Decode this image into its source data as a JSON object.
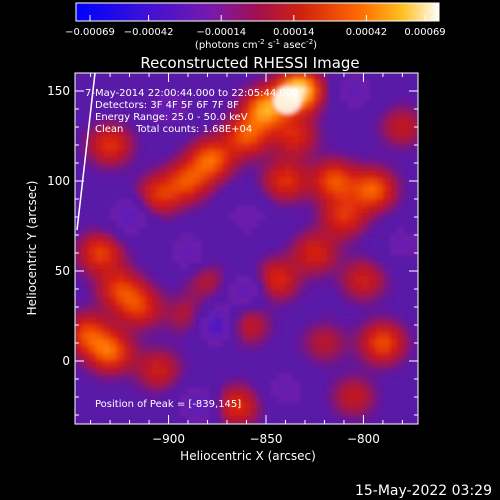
{
  "chart_data": {
    "type": "heatmap",
    "title": "Reconstructed RHESSI Image",
    "xlabel": "Heliocentric X (arcsec)",
    "ylabel": "Heliocentric Y (arcsec)",
    "xlim": [
      -948,
      -772
    ],
    "ylim": [
      -35,
      160
    ],
    "x_ticks": [
      -900,
      -850,
      -800
    ],
    "y_ticks": [
      0,
      50,
      100,
      150
    ],
    "colorbar": {
      "tick_labels": [
        "-0.00069",
        "-0.00042",
        "-0.00014",
        "0.00014",
        "0.00042",
        "0.00069"
      ],
      "units_prefix": "(photons cm",
      "units_sup1": "-2",
      "units_mid": " s",
      "units_sup2": "-1",
      "units_mid2": " asec",
      "units_sup3": "-2",
      "units_suffix": ")"
    },
    "annotations": [
      "7-May-2014 22:00:44.000 to 22:05:44.000",
      "Detectors: 3F 4F 5F 6F 7F 8F",
      "Energy Range: 25.0 - 50.0 keV",
      "Clean    Total counts: 1.68E+04"
    ],
    "peak_label": "Position of Peak = [-839,145]",
    "peak": [
      -839,
      145
    ],
    "blobs": [
      {
        "x": -833,
        "y": 150,
        "value": 1.0
      },
      {
        "x": -850,
        "y": 140,
        "value": 0.75
      },
      {
        "x": -860,
        "y": 125,
        "value": 0.55
      },
      {
        "x": -878,
        "y": 112,
        "value": 0.6
      },
      {
        "x": -890,
        "y": 100,
        "value": 0.5
      },
      {
        "x": -905,
        "y": 92,
        "value": 0.45
      },
      {
        "x": -930,
        "y": 120,
        "value": 0.45
      },
      {
        "x": -935,
        "y": 60,
        "value": 0.5
      },
      {
        "x": -925,
        "y": 40,
        "value": 0.45
      },
      {
        "x": -915,
        "y": 30,
        "value": 0.45
      },
      {
        "x": -942,
        "y": 15,
        "value": 0.5
      },
      {
        "x": -930,
        "y": 5,
        "value": 0.6
      },
      {
        "x": -905,
        "y": -5,
        "value": 0.35
      },
      {
        "x": -890,
        "y": 25,
        "value": 0.25
      },
      {
        "x": -880,
        "y": 45,
        "value": 0.25
      },
      {
        "x": -840,
        "y": 100,
        "value": 0.45
      },
      {
        "x": -815,
        "y": 100,
        "value": 0.55
      },
      {
        "x": -795,
        "y": 95,
        "value": 0.6
      },
      {
        "x": -810,
        "y": 80,
        "value": 0.45
      },
      {
        "x": -825,
        "y": 60,
        "value": 0.4
      },
      {
        "x": -845,
        "y": 45,
        "value": 0.45
      },
      {
        "x": -860,
        "y": 20,
        "value": 0.35
      },
      {
        "x": -865,
        "y": -25,
        "value": 0.45
      },
      {
        "x": -800,
        "y": 45,
        "value": 0.35
      },
      {
        "x": -790,
        "y": 10,
        "value": 0.55
      },
      {
        "x": -805,
        "y": -20,
        "value": 0.3
      },
      {
        "x": -820,
        "y": 10,
        "value": 0.25
      },
      {
        "x": -780,
        "y": 130,
        "value": 0.3
      },
      {
        "x": -835,
        "y": 125,
        "value": 0.4
      }
    ],
    "voids": [
      {
        "x": -875,
        "y": 20,
        "value": -0.5
      },
      {
        "x": -860,
        "y": 40,
        "value": -0.35
      },
      {
        "x": -890,
        "y": 60,
        "value": -0.3
      },
      {
        "x": -920,
        "y": 80,
        "value": -0.35
      },
      {
        "x": -900,
        "y": 140,
        "value": -0.3
      },
      {
        "x": -860,
        "y": 80,
        "value": -0.25
      },
      {
        "x": -805,
        "y": 150,
        "value": -0.3
      },
      {
        "x": -780,
        "y": 65,
        "value": -0.25
      },
      {
        "x": -840,
        "y": -15,
        "value": -0.25
      },
      {
        "x": -885,
        "y": -25,
        "value": -0.35
      }
    ]
  },
  "footer": {
    "timestamp": "15-May-2022 03:29"
  }
}
